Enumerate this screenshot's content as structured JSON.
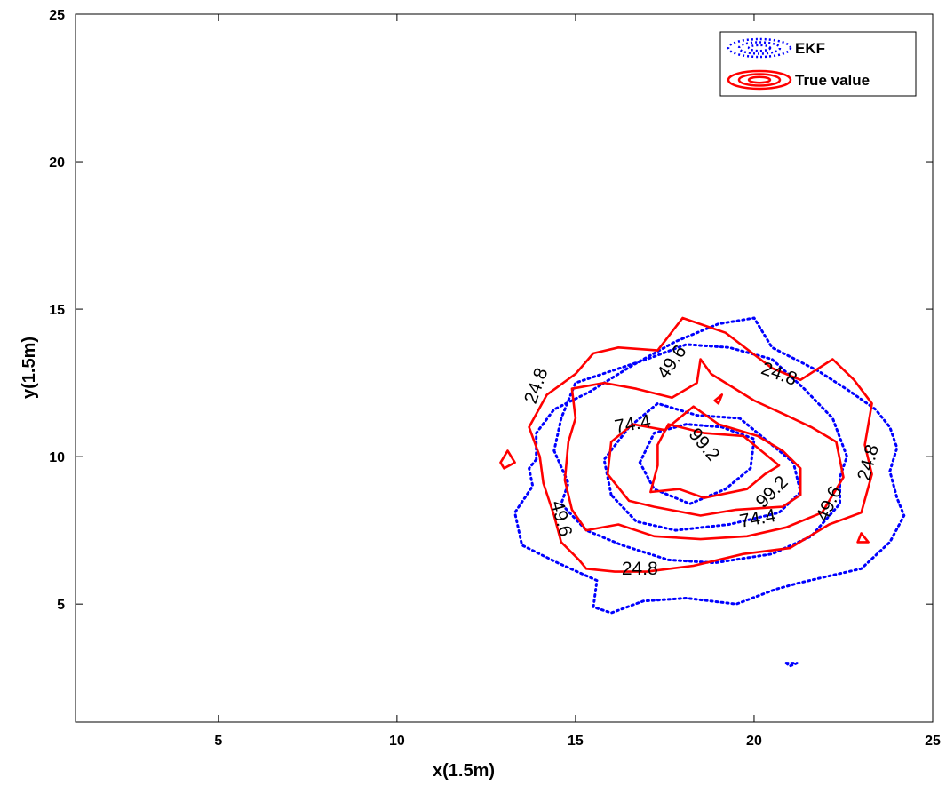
{
  "chart_data": {
    "type": "contour",
    "title": "",
    "xlabel": "x(1.5m)",
    "ylabel": "y(1.5m)",
    "xlim": [
      1,
      25
    ],
    "ylim": [
      1,
      25
    ],
    "xticks": [
      5,
      10,
      15,
      20,
      25
    ],
    "yticks": [
      5,
      10,
      15,
      20,
      25
    ],
    "xtick_labels": [
      "5",
      "10",
      "15",
      "20",
      "25"
    ],
    "ytick_labels": [
      "5",
      "10",
      "15",
      "20",
      "25"
    ],
    "grid": false,
    "legend_position": "top-right",
    "contour_levels": [
      24.8,
      49.6,
      74.4,
      99.2
    ],
    "series": [
      {
        "name": "EKF",
        "color": "#0000ff",
        "line_style": "dotted",
        "contours": [
          {
            "level": 24.8,
            "points": [
              [
                13.9,
                9.9
              ],
              [
                13.7,
                9.6
              ],
              [
                13.8,
                9.0
              ],
              [
                13.3,
                8.1
              ],
              [
                13.5,
                7.0
              ],
              [
                14.5,
                6.4
              ],
              [
                15.6,
                5.8
              ],
              [
                15.5,
                4.9
              ],
              [
                16.0,
                4.7
              ],
              [
                16.9,
                5.1
              ],
              [
                18.1,
                5.2
              ],
              [
                19.5,
                5.0
              ],
              [
                20.6,
                5.5
              ],
              [
                21.2,
                5.7
              ],
              [
                21.9,
                5.9
              ],
              [
                23.0,
                6.2
              ],
              [
                23.8,
                7.1
              ],
              [
                24.2,
                8.0
              ],
              [
                24.0,
                8.6
              ],
              [
                23.8,
                9.5
              ],
              [
                24.0,
                10.3
              ],
              [
                23.8,
                11.0
              ],
              [
                23.4,
                11.6
              ],
              [
                22.7,
                12.2
              ],
              [
                21.8,
                12.9
              ],
              [
                20.5,
                13.7
              ],
              [
                20.0,
                14.7
              ],
              [
                19.0,
                14.5
              ],
              [
                17.8,
                13.9
              ],
              [
                16.6,
                13.1
              ],
              [
                15.4,
                12.2
              ],
              [
                14.4,
                11.6
              ],
              [
                13.9,
                10.8
              ],
              [
                13.9,
                9.9
              ]
            ]
          },
          {
            "level": 49.6,
            "points": [
              [
                14.4,
                10.2
              ],
              [
                14.8,
                9.1
              ],
              [
                14.6,
                8.4
              ],
              [
                15.3,
                7.5
              ],
              [
                16.3,
                7.0
              ],
              [
                17.6,
                6.5
              ],
              [
                18.9,
                6.4
              ],
              [
                20.5,
                6.7
              ],
              [
                21.6,
                7.3
              ],
              [
                22.4,
                8.4
              ],
              [
                22.4,
                9.3
              ],
              [
                22.6,
                10.0
              ],
              [
                22.2,
                11.3
              ],
              [
                21.4,
                12.3
              ],
              [
                20.5,
                13.3
              ],
              [
                19.3,
                13.7
              ],
              [
                18.1,
                13.8
              ],
              [
                17.0,
                13.3
              ],
              [
                16.0,
                12.9
              ],
              [
                15.0,
                12.5
              ],
              [
                14.6,
                11.3
              ],
              [
                14.4,
                10.2
              ]
            ]
          },
          {
            "level": 74.4,
            "points": [
              [
                16.0,
                8.7
              ],
              [
                15.8,
                9.9
              ],
              [
                16.5,
                11.0
              ],
              [
                17.3,
                11.8
              ],
              [
                18.4,
                11.4
              ],
              [
                19.6,
                11.3
              ],
              [
                20.3,
                10.6
              ],
              [
                21.1,
                9.8
              ],
              [
                21.3,
                8.8
              ],
              [
                20.7,
                8.1
              ],
              [
                19.3,
                7.7
              ],
              [
                17.8,
                7.5
              ],
              [
                16.7,
                7.8
              ],
              [
                16.0,
                8.7
              ]
            ]
          },
          {
            "level": 99.2,
            "points": [
              [
                16.8,
                9.8
              ],
              [
                17.2,
                8.9
              ],
              [
                18.2,
                8.4
              ],
              [
                19.2,
                8.9
              ],
              [
                19.9,
                9.6
              ],
              [
                20.0,
                10.6
              ],
              [
                19.1,
                11.0
              ],
              [
                18.1,
                11.1
              ],
              [
                17.2,
                10.8
              ],
              [
                16.8,
                9.8
              ]
            ]
          },
          {
            "level": 24.8,
            "points": [
              [
                20.9,
                3.0
              ],
              [
                21.2,
                3.0
              ],
              [
                21.0,
                2.9
              ],
              [
                20.9,
                3.0
              ]
            ]
          }
        ]
      },
      {
        "name": "True value",
        "color": "#ff0000",
        "line_style": "solid",
        "contours": [
          {
            "level": 24.8,
            "points": [
              [
                15.3,
                6.2
              ],
              [
                15.1,
                6.5
              ],
              [
                14.6,
                7.1
              ],
              [
                14.4,
                8.0
              ],
              [
                14.1,
                9.1
              ],
              [
                14.0,
                10.0
              ],
              [
                13.7,
                11.0
              ],
              [
                14.2,
                12.1
              ],
              [
                15.0,
                12.8
              ],
              [
                15.5,
                13.5
              ],
              [
                16.2,
                13.7
              ],
              [
                17.3,
                13.6
              ],
              [
                18.0,
                14.7
              ],
              [
                19.2,
                14.2
              ],
              [
                20.5,
                13.0
              ],
              [
                21.3,
                12.6
              ],
              [
                22.2,
                13.3
              ],
              [
                22.8,
                12.6
              ],
              [
                23.3,
                11.8
              ],
              [
                23.1,
                10.4
              ],
              [
                23.3,
                9.4
              ],
              [
                23.0,
                8.1
              ],
              [
                22.1,
                7.7
              ],
              [
                21.0,
                6.9
              ],
              [
                19.7,
                6.7
              ],
              [
                18.3,
                6.3
              ],
              [
                17.0,
                6.1
              ],
              [
                16.1,
                6.1
              ],
              [
                15.3,
                6.2
              ]
            ]
          },
          {
            "level": 49.6,
            "points": [
              [
                15.3,
                7.5
              ],
              [
                14.9,
                8.2
              ],
              [
                14.7,
                9.2
              ],
              [
                14.8,
                10.5
              ],
              [
                15.0,
                11.3
              ],
              [
                14.9,
                12.3
              ],
              [
                15.8,
                12.5
              ],
              [
                16.7,
                12.3
              ],
              [
                17.7,
                12.0
              ],
              [
                18.4,
                12.5
              ],
              [
                18.5,
                13.3
              ],
              [
                18.8,
                12.8
              ],
              [
                20.0,
                11.9
              ],
              [
                20.9,
                11.4
              ],
              [
                21.6,
                11.0
              ],
              [
                22.3,
                10.5
              ],
              [
                22.5,
                9.3
              ],
              [
                21.9,
                8.1
              ],
              [
                20.9,
                7.6
              ],
              [
                19.8,
                7.3
              ],
              [
                18.5,
                7.2
              ],
              [
                17.2,
                7.3
              ],
              [
                16.2,
                7.7
              ],
              [
                15.3,
                7.5
              ]
            ]
          },
          {
            "level": 74.4,
            "points": [
              [
                16.6,
                11.1
              ],
              [
                17.5,
                10.9
              ],
              [
                18.3,
                11.7
              ],
              [
                19.0,
                11.1
              ],
              [
                20.1,
                10.7
              ],
              [
                20.8,
                10.2
              ],
              [
                21.3,
                9.6
              ],
              [
                21.3,
                8.7
              ],
              [
                20.8,
                8.3
              ],
              [
                19.5,
                8.2
              ],
              [
                18.5,
                8.0
              ],
              [
                17.2,
                8.3
              ],
              [
                16.5,
                8.5
              ],
              [
                15.9,
                9.4
              ],
              [
                16.0,
                10.5
              ],
              [
                16.6,
                11.1
              ]
            ]
          },
          {
            "level": 99.2,
            "points": [
              [
                17.1,
                8.8
              ],
              [
                17.3,
                9.7
              ],
              [
                17.3,
                10.4
              ],
              [
                17.6,
                11.1
              ],
              [
                18.6,
                10.8
              ],
              [
                19.7,
                10.7
              ],
              [
                20.3,
                10.1
              ],
              [
                20.7,
                9.7
              ],
              [
                20.3,
                9.4
              ],
              [
                19.8,
                8.9
              ],
              [
                18.6,
                8.6
              ],
              [
                17.9,
                8.9
              ],
              [
                17.1,
                8.8
              ]
            ]
          },
          {
            "level": 24.8,
            "points": [
              [
                12.9,
                9.8
              ],
              [
                13.1,
                10.2
              ],
              [
                13.3,
                9.8
              ],
              [
                13.0,
                9.6
              ],
              [
                12.9,
                9.8
              ]
            ]
          },
          {
            "level": 24.8,
            "points": [
              [
                22.9,
                7.1
              ],
              [
                23.0,
                7.4
              ],
              [
                23.2,
                7.1
              ],
              [
                22.9,
                7.1
              ]
            ]
          },
          {
            "level": 24.8,
            "points": [
              [
                18.9,
                11.9
              ],
              [
                19.1,
                12.1
              ],
              [
                19.0,
                11.8
              ],
              [
                18.9,
                11.9
              ]
            ]
          }
        ]
      }
    ],
    "contour_labels": [
      {
        "text": "24.8",
        "x": 13.9,
        "y": 12.4,
        "angle": -70
      },
      {
        "text": "49.6",
        "x": 17.7,
        "y": 13.2,
        "angle": -55
      },
      {
        "text": "24.8",
        "x": 20.7,
        "y": 12.8,
        "angle": 20
      },
      {
        "text": "74.4",
        "x": 16.6,
        "y": 11.1,
        "angle": -10
      },
      {
        "text": "99.2",
        "x": 18.6,
        "y": 10.4,
        "angle": 50
      },
      {
        "text": "99.2",
        "x": 20.5,
        "y": 8.8,
        "angle": -45
      },
      {
        "text": "74.4",
        "x": 20.1,
        "y": 7.9,
        "angle": -10
      },
      {
        "text": "24.8",
        "x": 23.2,
        "y": 9.8,
        "angle": -75
      },
      {
        "text": "49.6",
        "x": 22.1,
        "y": 8.4,
        "angle": -65
      },
      {
        "text": "49.6",
        "x": 14.6,
        "y": 7.9,
        "angle": 75
      },
      {
        "text": "24.8",
        "x": 16.8,
        "y": 6.2,
        "angle": 0
      }
    ]
  }
}
